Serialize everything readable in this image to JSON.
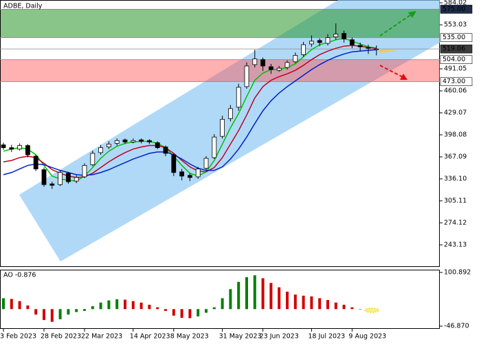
{
  "chart_data": [
    {
      "type": "candlestick",
      "title": "ADBE, Daily",
      "categories": [
        "3 Feb 2023",
        null,
        null,
        null,
        null,
        "28 Feb 2023",
        null,
        null,
        null,
        null,
        "22 Mar 2023",
        null,
        null,
        null,
        null,
        null,
        "14 Apr 2023",
        null,
        null,
        null,
        null,
        "8 May 2023",
        null,
        null,
        null,
        null,
        null,
        "31 May 2023",
        null,
        null,
        null,
        null,
        "23 Jun 2023",
        null,
        null,
        null,
        null,
        null,
        "18 Jul 2023",
        null,
        null,
        null,
        null,
        "9 Aug 2023",
        null,
        null,
        null
      ],
      "open": [
        384,
        380,
        378,
        383,
        368,
        349,
        329,
        328,
        344,
        333,
        339,
        356,
        373,
        381,
        386,
        391,
        388,
        391,
        390,
        387,
        381,
        370,
        346,
        341,
        339,
        351,
        366,
        396,
        421,
        437,
        466,
        497,
        504,
        494,
        489,
        493,
        501,
        511,
        526,
        531,
        527,
        536,
        541,
        532,
        524,
        521,
        518
      ],
      "high": [
        387,
        384,
        386,
        385,
        370,
        352,
        332,
        348,
        346,
        341,
        358,
        376,
        384,
        389,
        393,
        393,
        393,
        393,
        392,
        389,
        383,
        372,
        350,
        344,
        353,
        368,
        399,
        425,
        440,
        470,
        500,
        518,
        507,
        498,
        495,
        503,
        514,
        529,
        538,
        534,
        540,
        555,
        545,
        535,
        528,
        525,
        524
      ],
      "low": [
        377,
        374,
        376,
        366,
        347,
        325,
        322,
        326,
        329,
        330,
        337,
        354,
        370,
        378,
        383,
        385,
        386,
        386,
        385,
        378,
        368,
        340,
        334,
        333,
        336,
        348,
        364,
        393,
        417,
        432,
        463,
        493,
        488,
        484,
        487,
        490,
        499,
        508,
        522,
        523,
        524,
        532,
        528,
        520,
        516,
        512,
        510
      ],
      "close": [
        380,
        378,
        383,
        370,
        350,
        328,
        327,
        345,
        332,
        338,
        355,
        372,
        380,
        385,
        390,
        388,
        390,
        389,
        388,
        380,
        372,
        345,
        340,
        338,
        350,
        365,
        395,
        420,
        435,
        465,
        495,
        505,
        495,
        490,
        492,
        500,
        510,
        525,
        530,
        528,
        535,
        540,
        533,
        525,
        522,
        520,
        519.06
      ],
      "series": [
        {
          "color": "#00c000",
          "values": [
            375,
            378,
            380,
            378,
            370,
            355,
            340,
            336,
            334,
            333,
            340,
            352,
            365,
            375,
            382,
            386,
            388,
            389,
            389,
            386,
            380,
            368,
            355,
            344,
            340,
            346,
            362,
            385,
            408,
            428,
            452,
            475,
            485,
            490,
            490,
            493,
            498,
            508,
            518,
            525,
            528,
            532,
            534,
            530,
            526,
            522,
            520
          ]
        },
        {
          "color": "#c00020",
          "values": [
            360,
            362,
            366,
            368,
            366,
            358,
            349,
            344,
            340,
            338,
            339,
            344,
            352,
            360,
            367,
            373,
            378,
            381,
            383,
            383,
            380,
            372,
            362,
            353,
            347,
            346,
            352,
            366,
            385,
            404,
            426,
            450,
            466,
            475,
            480,
            484,
            489,
            496,
            504,
            511,
            516,
            520,
            523,
            524,
            523,
            521,
            520
          ]
        },
        {
          "color": "#0020c8",
          "values": [
            342,
            345,
            350,
            355,
            357,
            356,
            352,
            348,
            345,
            342,
            341,
            342,
            345,
            349,
            354,
            359,
            364,
            368,
            372,
            374,
            374,
            370,
            364,
            357,
            351,
            348,
            348,
            353,
            364,
            378,
            395,
            414,
            432,
            446,
            457,
            466,
            474,
            482,
            490,
            497,
            503,
            508,
            512,
            515,
            516,
            517,
            518
          ]
        }
      ],
      "ylim": [
        212,
        588
      ],
      "yticks": [
        584.02,
        553.03,
        491.05,
        460.06,
        429.07,
        398.08,
        367.09,
        {
          "value": 336.1,
          "label": "336.10"
        },
        305.11,
        274.12,
        243.13
      ],
      "levels": [
        {
          "value": 575,
          "label": "575.00",
          "color": "#1c2d4a"
        },
        {
          "value": 535,
          "label": "535.00",
          "color": "#ffffff"
        },
        {
          "value": 519.06,
          "label": "519.06",
          "color": "#3c3c3c"
        },
        {
          "value": 504,
          "label": "504.00",
          "color": "#ffffff"
        },
        {
          "value": 473,
          "label": "473.00",
          "color": "#ffffff"
        }
      ]
    },
    {
      "type": "bar",
      "title": "AO -0.876",
      "values": [
        30,
        28,
        22,
        10,
        -15,
        -30,
        -35,
        -28,
        -15,
        -8,
        -5,
        8,
        18,
        24,
        27,
        26,
        22,
        18,
        12,
        5,
        -5,
        -18,
        -24,
        -25,
        -20,
        -10,
        5,
        30,
        55,
        75,
        88,
        93,
        85,
        72,
        60,
        48,
        40,
        37,
        35,
        30,
        25,
        18,
        12,
        5,
        0,
        -2,
        -0.876
      ],
      "up_color": "#008000",
      "down_color": "#d00000",
      "ylim": [
        -54.4,
        108.5
      ],
      "yticks": [
        100.892,
        {
          "value": -46.87,
          "label": "-46.870"
        }
      ]
    }
  ]
}
